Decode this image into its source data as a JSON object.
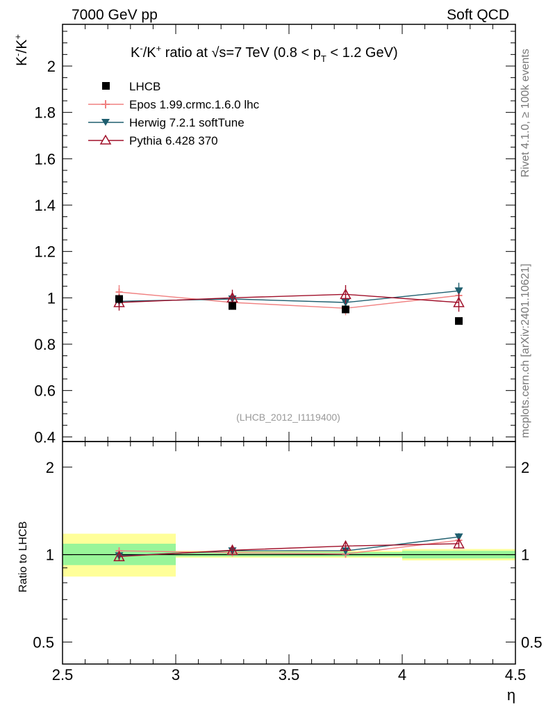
{
  "header": {
    "left": "7000 GeV pp",
    "right": "Soft QCD"
  },
  "side_text": {
    "rivet": "Rivet 4.1.0, ≥ 100k events",
    "mcplots": "mcplots.cern.ch [arXiv:2401.10621]"
  },
  "chart_data": [
    {
      "type": "scatter",
      "title_parts": {
        "k1": "K",
        "sup1": "-",
        "slash": "/K",
        "sup2": "+",
        "mid": " ratio at √s=7 TeV (0.8 < p",
        "sub": "T",
        "end": " < 1.2 GeV)"
      },
      "ylabel_parts": {
        "k1": "K",
        "sup1": "-",
        "slash": "/K",
        "sup2": "+"
      },
      "analysis_tag": "(LHCB_2012_I1119400)",
      "xlim": [
        2.5,
        4.5
      ],
      "ylim": [
        0.38,
        2.18
      ],
      "yticks": [
        "0.4",
        "0.6",
        "0.8",
        "1",
        "1.2",
        "1.4",
        "1.6",
        "1.8",
        "2"
      ],
      "series": [
        {
          "name": "LHCB",
          "color": "#000000",
          "marker": "square",
          "points": [
            {
              "x": 2.75,
              "y": 0.995,
              "err": 0.01
            },
            {
              "x": 3.25,
              "y": 0.965,
              "err": 0.01
            },
            {
              "x": 3.75,
              "y": 0.95,
              "err": 0.01
            },
            {
              "x": 4.25,
              "y": 0.9,
              "err": 0.0
            }
          ]
        },
        {
          "name": "Epos 1.99.crmc.1.6.0 lhc",
          "color": "#f08080",
          "marker": "cross",
          "points": [
            {
              "x": 2.75,
              "y": 1.025,
              "err": 0.03
            },
            {
              "x": 3.25,
              "y": 0.98,
              "err": 0.03
            },
            {
              "x": 3.75,
              "y": 0.955,
              "err": 0.03
            },
            {
              "x": 4.25,
              "y": 1.01,
              "err": 0.03
            }
          ]
        },
        {
          "name": "Herwig 7.2.1 softTune",
          "color": "#1e5e6e",
          "marker": "triangle-down",
          "points": [
            {
              "x": 2.75,
              "y": 0.985,
              "err": 0.02
            },
            {
              "x": 3.25,
              "y": 0.995,
              "err": 0.02
            },
            {
              "x": 3.75,
              "y": 0.98,
              "err": 0.02
            },
            {
              "x": 4.25,
              "y": 1.03,
              "err": 0.035
            }
          ]
        },
        {
          "name": "Pythia 6.428 370",
          "color": "#a0102a",
          "marker": "triangle-up-open",
          "points": [
            {
              "x": 2.75,
              "y": 0.98,
              "err": 0.035
            },
            {
              "x": 3.25,
              "y": 1.0,
              "err": 0.035
            },
            {
              "x": 3.75,
              "y": 1.015,
              "err": 0.04
            },
            {
              "x": 4.25,
              "y": 0.98,
              "err": 0.04
            }
          ]
        }
      ]
    },
    {
      "type": "scatter",
      "ylabel": "Ratio to LHCB",
      "xlabel": "η",
      "xlim": [
        2.5,
        4.5
      ],
      "ylim": [
        0.42,
        2.45
      ],
      "yscale": "log",
      "yticks": [
        "0.5",
        "1",
        "2"
      ],
      "xticks": [
        "2.5",
        "3",
        "3.5",
        "4",
        "4.5"
      ],
      "bands": [
        {
          "x0": 2.5,
          "x1": 3.0,
          "inner": [
            0.92,
            1.09
          ],
          "outer": [
            0.84,
            1.18
          ]
        },
        {
          "x0": 3.0,
          "x1": 3.5,
          "inner": [
            0.985,
            1.02
          ],
          "outer": [
            0.975,
            1.03
          ]
        },
        {
          "x0": 3.5,
          "x1": 4.0,
          "inner": [
            0.985,
            1.02
          ],
          "outer": [
            0.975,
            1.03
          ]
        },
        {
          "x0": 4.0,
          "x1": 4.5,
          "inner": [
            0.97,
            1.03
          ],
          "outer": [
            0.955,
            1.045
          ]
        }
      ],
      "series": [
        {
          "name": "Epos 1.99.crmc.1.6.0 lhc",
          "color": "#f08080",
          "marker": "cross",
          "points": [
            {
              "x": 2.75,
              "y": 1.03,
              "err": 0.03
            },
            {
              "x": 3.25,
              "y": 1.015,
              "err": 0.03
            },
            {
              "x": 3.75,
              "y": 1.005,
              "err": 0.03
            },
            {
              "x": 4.25,
              "y": 1.12,
              "err": 0.03
            }
          ]
        },
        {
          "name": "Herwig 7.2.1 softTune",
          "color": "#1e5e6e",
          "marker": "triangle-down",
          "points": [
            {
              "x": 2.75,
              "y": 0.99,
              "err": 0.02
            },
            {
              "x": 3.25,
              "y": 1.03,
              "err": 0.02
            },
            {
              "x": 3.75,
              "y": 1.03,
              "err": 0.02
            },
            {
              "x": 4.25,
              "y": 1.15,
              "err": 0.035
            }
          ]
        },
        {
          "name": "Pythia 6.428 370",
          "color": "#a0102a",
          "marker": "triangle-up-open",
          "points": [
            {
              "x": 2.75,
              "y": 0.985,
              "err": 0.035
            },
            {
              "x": 3.25,
              "y": 1.035,
              "err": 0.035
            },
            {
              "x": 3.75,
              "y": 1.07,
              "err": 0.04
            },
            {
              "x": 4.25,
              "y": 1.09,
              "err": 0.04
            }
          ]
        }
      ]
    }
  ]
}
